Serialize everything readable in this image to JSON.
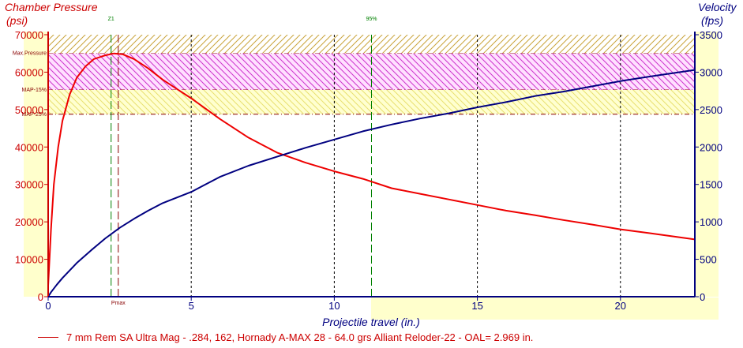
{
  "chart_data": {
    "type": "line",
    "left_axis_title": [
      "Chamber Pressure",
      "(psi)"
    ],
    "right_axis_title": [
      "Velocity",
      "(fps)"
    ],
    "xlabel": "Projectile travel (in.)",
    "xlim": [
      0,
      22.6
    ],
    "x_ticks": [
      0,
      5,
      10,
      15,
      20
    ],
    "ylim_left": [
      0,
      70000
    ],
    "y_ticks_left": [
      0,
      10000,
      20000,
      30000,
      40000,
      50000,
      60000,
      70000
    ],
    "ylim_right": [
      0,
      3500
    ],
    "y_ticks_right": [
      0,
      500,
      1000,
      1500,
      2000,
      2500,
      3000,
      3500
    ],
    "grid": true,
    "bands": [
      {
        "label": "Max.Pressure",
        "from": 65000,
        "to": 70000,
        "pattern": "hatch",
        "color": "#c9a43a"
      },
      {
        "label": "MAP-15%",
        "from": 55250,
        "to": 65000,
        "pattern": "hatch",
        "color": "#cc33cc"
      },
      {
        "label": "MAP-25%",
        "from": 48750,
        "to": 55250,
        "pattern": "hatch",
        "color": "#e8e070"
      }
    ],
    "vlines": [
      {
        "label": "Z1",
        "x": 2.2,
        "color": "#008000",
        "axis": "top"
      },
      {
        "label": "95%",
        "x": 11.3,
        "color": "#008000",
        "axis": "top"
      },
      {
        "label": "Pmax",
        "x": 2.45,
        "color": "#880000",
        "axis": "bottom"
      }
    ],
    "series": [
      {
        "name": "7 mm Rem SA Ultra Mag - .284, 162, Hornady A-MAX 28 - 64.0 grs Alliant Reloder-22 - OAL= 2.969 in.",
        "axis": "left",
        "color": "#ee0000",
        "x": [
          0,
          0.1,
          0.2,
          0.35,
          0.5,
          0.75,
          1.0,
          1.3,
          1.6,
          2.0,
          2.3,
          2.6,
          3.0,
          3.5,
          4.0,
          4.5,
          5.0,
          6.0,
          7.0,
          8.0,
          9.0,
          10.0,
          11.0,
          12.0,
          13.0,
          14.0,
          15.0,
          16.0,
          17.0,
          18.0,
          19.0,
          20.0,
          21.0,
          22.6
        ],
        "y": [
          3000,
          18000,
          30000,
          40000,
          47000,
          54000,
          58500,
          61500,
          63500,
          64500,
          65000,
          64800,
          63500,
          61000,
          58000,
          55500,
          53000,
          47500,
          42500,
          38500,
          35800,
          33500,
          31500,
          29000,
          27500,
          26000,
          24500,
          23000,
          21800,
          20500,
          19300,
          18000,
          17000,
          15300
        ]
      },
      {
        "name": "Velocity",
        "axis": "right",
        "color": "#000080",
        "x": [
          0,
          0.1,
          0.3,
          0.5,
          1.0,
          1.5,
          2.0,
          2.5,
          3.0,
          3.5,
          4.0,
          5.0,
          6.0,
          7.0,
          8.0,
          9.0,
          10.0,
          11.0,
          12.0,
          13.0,
          14.0,
          15.0,
          16.0,
          17.0,
          18.0,
          19.0,
          20.0,
          21.0,
          22.6
        ],
        "y": [
          0,
          60,
          160,
          250,
          450,
          620,
          780,
          920,
          1040,
          1150,
          1250,
          1400,
          1600,
          1750,
          1870,
          1990,
          2100,
          2210,
          2300,
          2380,
          2450,
          2530,
          2600,
          2680,
          2740,
          2810,
          2880,
          2940,
          3030
        ]
      }
    ]
  }
}
